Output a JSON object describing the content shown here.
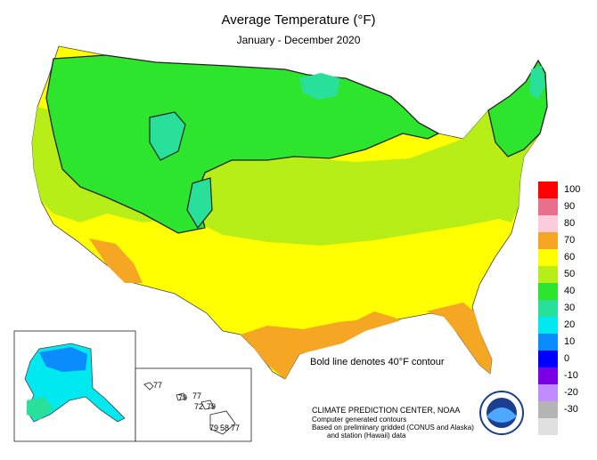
{
  "header": {
    "title": "Average Temperature (°F)",
    "subtitle": "January - December 2020"
  },
  "legend": {
    "items": [
      {
        "label": "100",
        "color": "#ff0000"
      },
      {
        "label": "90",
        "color": "#e8708c"
      },
      {
        "label": "80",
        "color": "#ffccdd"
      },
      {
        "label": "70",
        "color": "#f5a623"
      },
      {
        "label": "60",
        "color": "#ffff00"
      },
      {
        "label": "50",
        "color": "#b7ee17"
      },
      {
        "label": "40",
        "color": "#2ee52e"
      },
      {
        "label": "30",
        "color": "#29e09a"
      },
      {
        "label": "20",
        "color": "#00e8f0"
      },
      {
        "label": "10",
        "color": "#0a8cff"
      },
      {
        "label": "0",
        "color": "#0000ff"
      },
      {
        "label": "-10",
        "color": "#7a00e6"
      },
      {
        "label": "-20",
        "color": "#c08cff"
      },
      {
        "label": "-30",
        "color": "#b4b4b4"
      },
      {
        "label": "",
        "color": "#e0e0e0"
      }
    ]
  },
  "annotations": {
    "contour_note": "Bold line denotes 40°F contour",
    "credit_org": "CLIMATE PREDICTION CENTER, NOAA",
    "credit_line2": "Computer generated contours",
    "credit_line3": "Based on preliminary gridded (CONUS and Alaska)",
    "credit_line4": "and station (Hawaii) data"
  },
  "hawaii_labels": [
    "77",
    "79",
    "77",
    "72",
    "79",
    "79",
    "58",
    "77"
  ],
  "colors": {
    "deg_70": "#f5a623",
    "deg_60": "#ffff00",
    "deg_50": "#b7ee17",
    "deg_40": "#2ee52e",
    "deg_30": "#29e09a",
    "deg_20": "#00e8f0",
    "deg_10": "#0a8cff"
  }
}
